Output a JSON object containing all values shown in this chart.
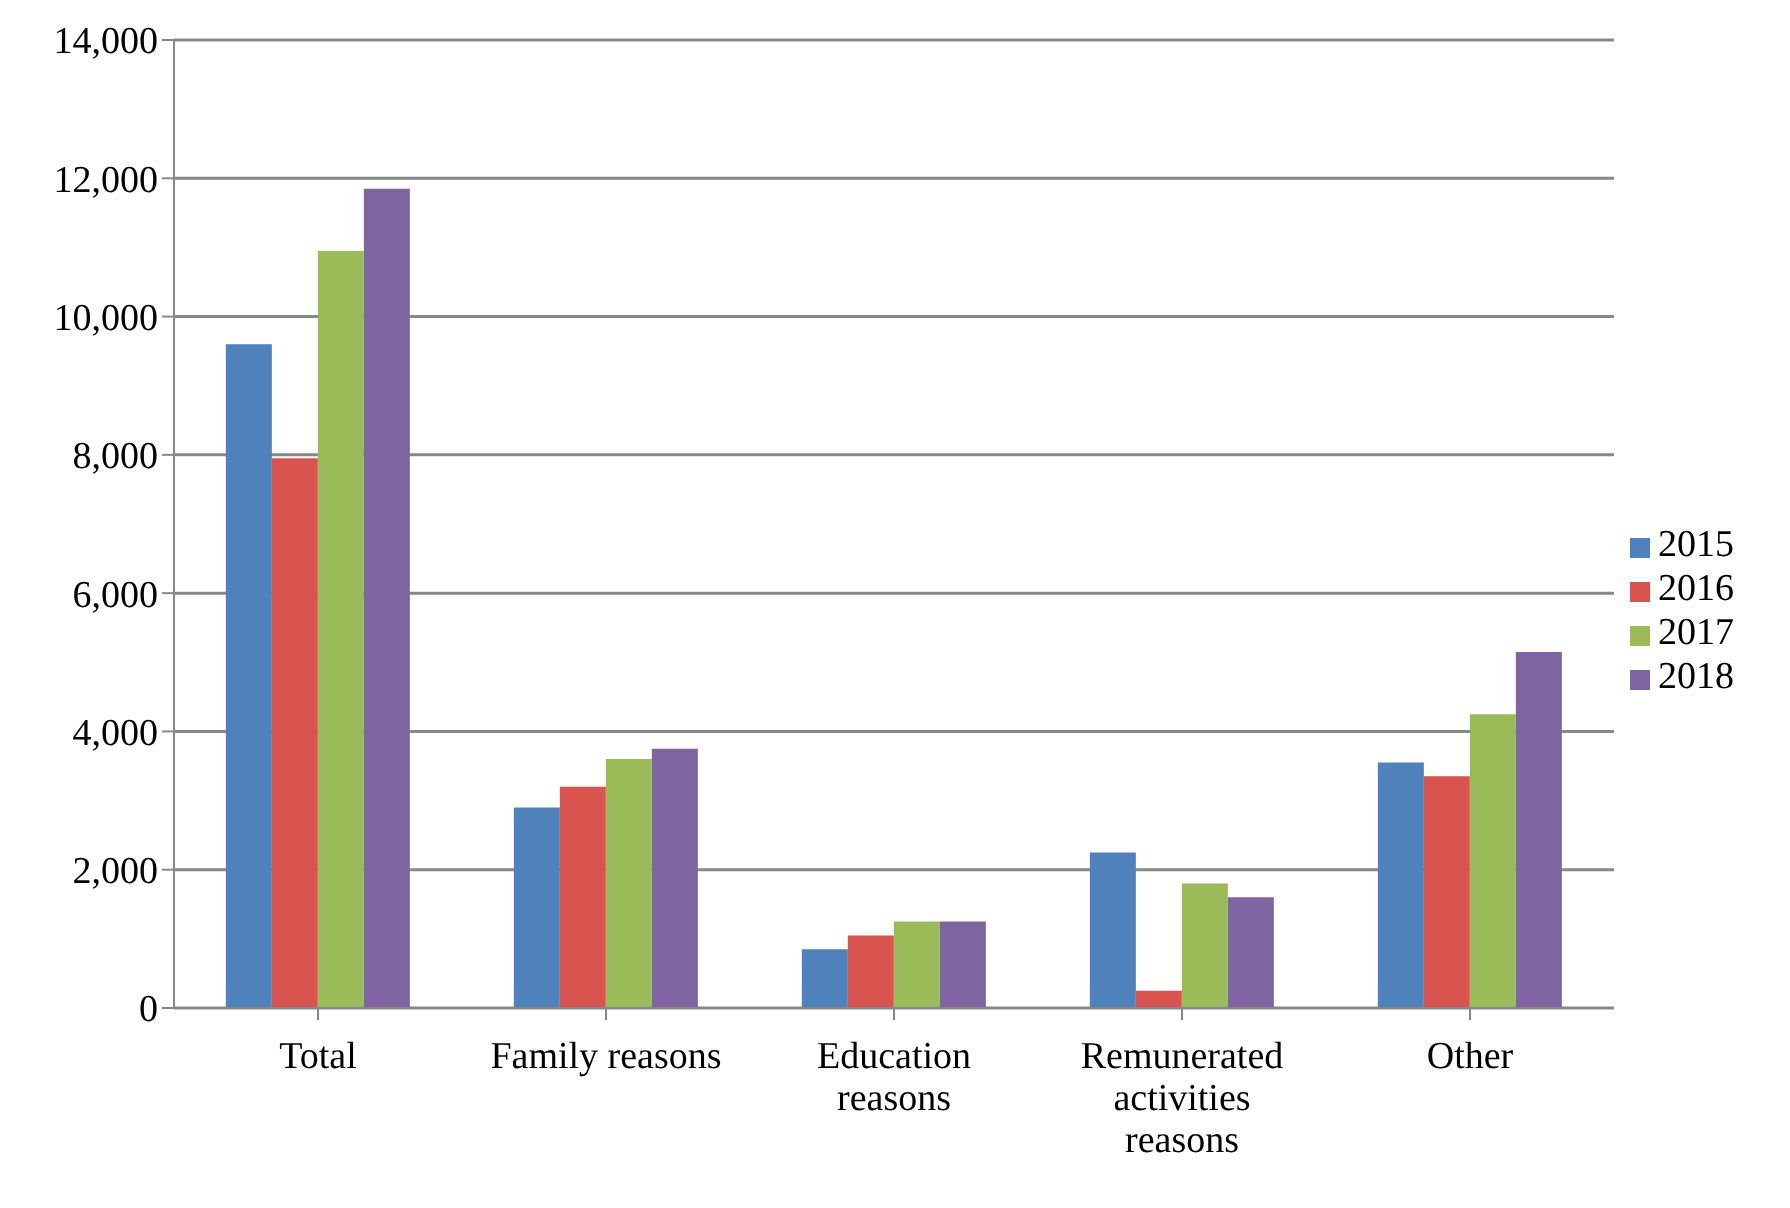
{
  "chart_data": {
    "type": "bar",
    "categories": [
      "Total",
      "Family reasons",
      "Education reasons",
      "Remunerated activities reasons",
      "Other"
    ],
    "series": [
      {
        "name": "2015",
        "color": "#4f81bd",
        "values": [
          9600,
          2900,
          850,
          2250,
          3550
        ]
      },
      {
        "name": "2016",
        "color": "#d9534f",
        "values": [
          7950,
          3200,
          1050,
          250,
          3350
        ]
      },
      {
        "name": "2017",
        "color": "#9bbb59",
        "values": [
          10950,
          3600,
          1250,
          1800,
          4250
        ]
      },
      {
        "name": "2018",
        "color": "#8064a2",
        "values": [
          11850,
          3750,
          1250,
          1600,
          5150
        ]
      }
    ],
    "ylim": [
      0,
      14000
    ],
    "yticks": [
      0,
      {
        "value": 2000,
        "label": "2,000"
      },
      {
        "value": 4000,
        "label": "4,000"
      },
      {
        "value": 6000,
        "label": "6,000"
      },
      {
        "value": 8000,
        "label": "8,000"
      },
      {
        "value": 10000,
        "label": "10,000"
      },
      {
        "value": 12000,
        "label": "12,000"
      },
      {
        "value": 14000,
        "label": "14,000"
      }
    ],
    "grid": "y",
    "legend": "right"
  }
}
